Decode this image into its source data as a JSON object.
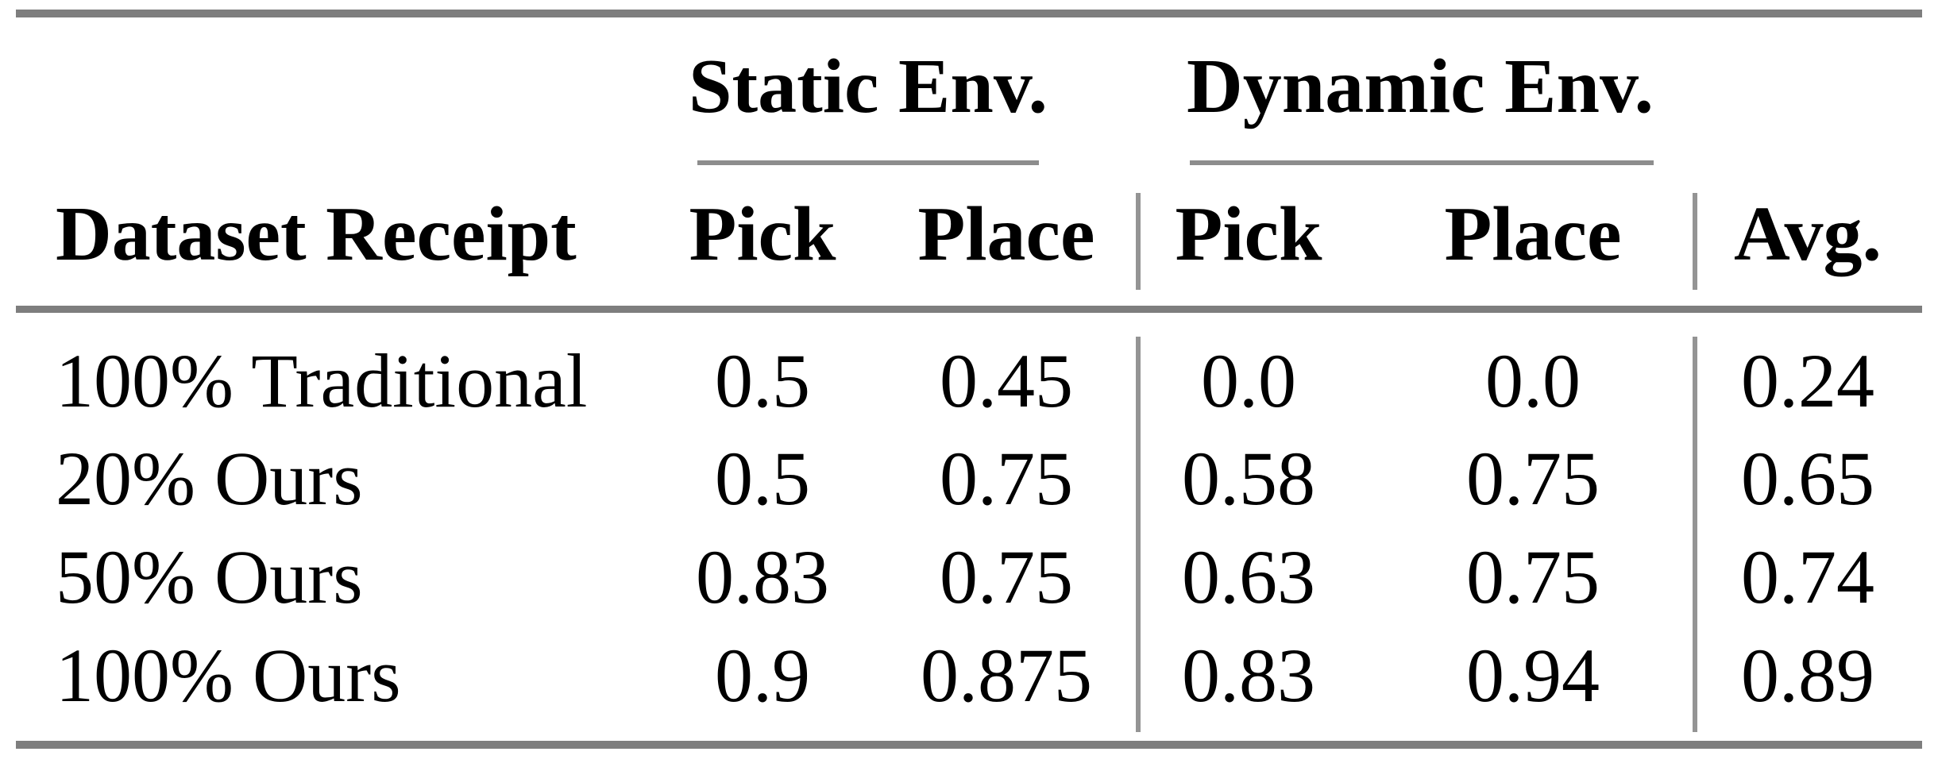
{
  "table": {
    "group_headers": [
      {
        "label": "Static Env."
      },
      {
        "label": "Dynamic Env."
      }
    ],
    "columns": [
      "Dataset Receipt",
      "Pick",
      "Place",
      "Pick",
      "Place",
      "Avg."
    ],
    "rows": [
      {
        "cells": [
          "100% Traditional",
          "0.5",
          "0.45",
          "0.0",
          "0.0",
          "0.24"
        ]
      },
      {
        "cells": [
          "20% Ours",
          "0.5",
          "0.75",
          "0.58",
          "0.75",
          "0.65"
        ]
      },
      {
        "cells": [
          "50% Ours",
          "0.83",
          "0.75",
          "0.63",
          "0.75",
          "0.74"
        ]
      },
      {
        "cells": [
          "100% Ours",
          "0.9",
          "0.875",
          "0.83",
          "0.94",
          "0.89"
        ]
      }
    ],
    "colors": {
      "rule_thick": "#7e7e7e",
      "rule_thin": "#8d8d8d",
      "vline": "#949494",
      "text": "#000000",
      "background": "#ffffff"
    }
  },
  "chart_data": {
    "type": "table",
    "title": "",
    "column_groups": [
      {
        "label": "Static Env.",
        "columns": [
          "Pick",
          "Place"
        ]
      },
      {
        "label": "Dynamic Env.",
        "columns": [
          "Pick",
          "Place"
        ]
      }
    ],
    "categories": [
      "100% Traditional",
      "20% Ours",
      "50% Ours",
      "100% Ours"
    ],
    "series": [
      {
        "name": "Static Pick",
        "values": [
          0.5,
          0.5,
          0.83,
          0.9
        ]
      },
      {
        "name": "Static Place",
        "values": [
          0.45,
          0.75,
          0.75,
          0.875
        ]
      },
      {
        "name": "Dynamic Pick",
        "values": [
          0.0,
          0.58,
          0.63,
          0.83
        ]
      },
      {
        "name": "Dynamic Place",
        "values": [
          0.0,
          0.75,
          0.75,
          0.94
        ]
      },
      {
        "name": "Avg.",
        "values": [
          0.24,
          0.65,
          0.74,
          0.89
        ]
      }
    ]
  }
}
